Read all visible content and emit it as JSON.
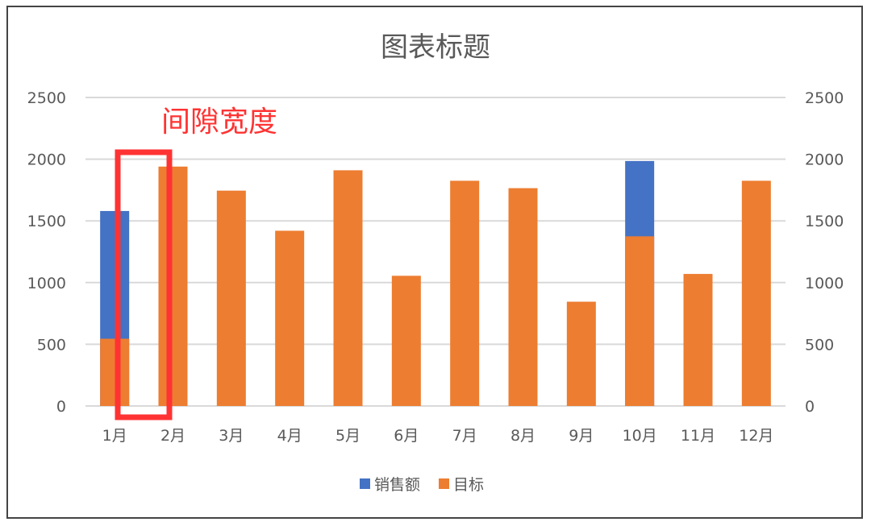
{
  "chart_data": {
    "type": "bar",
    "title": "图表标题",
    "categories": [
      "1月",
      "2月",
      "3月",
      "4月",
      "5月",
      "6月",
      "7月",
      "8月",
      "9月",
      "10月",
      "11月",
      "12月"
    ],
    "series": [
      {
        "name": "销售额",
        "color": "#4472C4",
        "axis": "primary",
        "values": [
          1580,
          null,
          null,
          null,
          null,
          null,
          null,
          null,
          null,
          1985,
          null,
          null
        ]
      },
      {
        "name": "目标",
        "color": "#ED7D31",
        "axis": "secondary",
        "values": [
          545,
          1940,
          1745,
          1420,
          1910,
          1055,
          1825,
          1765,
          845,
          1375,
          1070,
          1825
        ]
      }
    ],
    "ylim": [
      0,
      2500
    ],
    "yticks": [
      "0",
      "500",
      "1000",
      "1500",
      "2000",
      "2500"
    ],
    "y2lim": [
      0,
      2500
    ],
    "y2ticks": [
      "0",
      "500",
      "1000",
      "1500",
      "2000",
      "2500"
    ],
    "grid": true,
    "legend": "bottom",
    "annotation": {
      "text": "间隙宽度",
      "color": "#FF3333"
    }
  }
}
